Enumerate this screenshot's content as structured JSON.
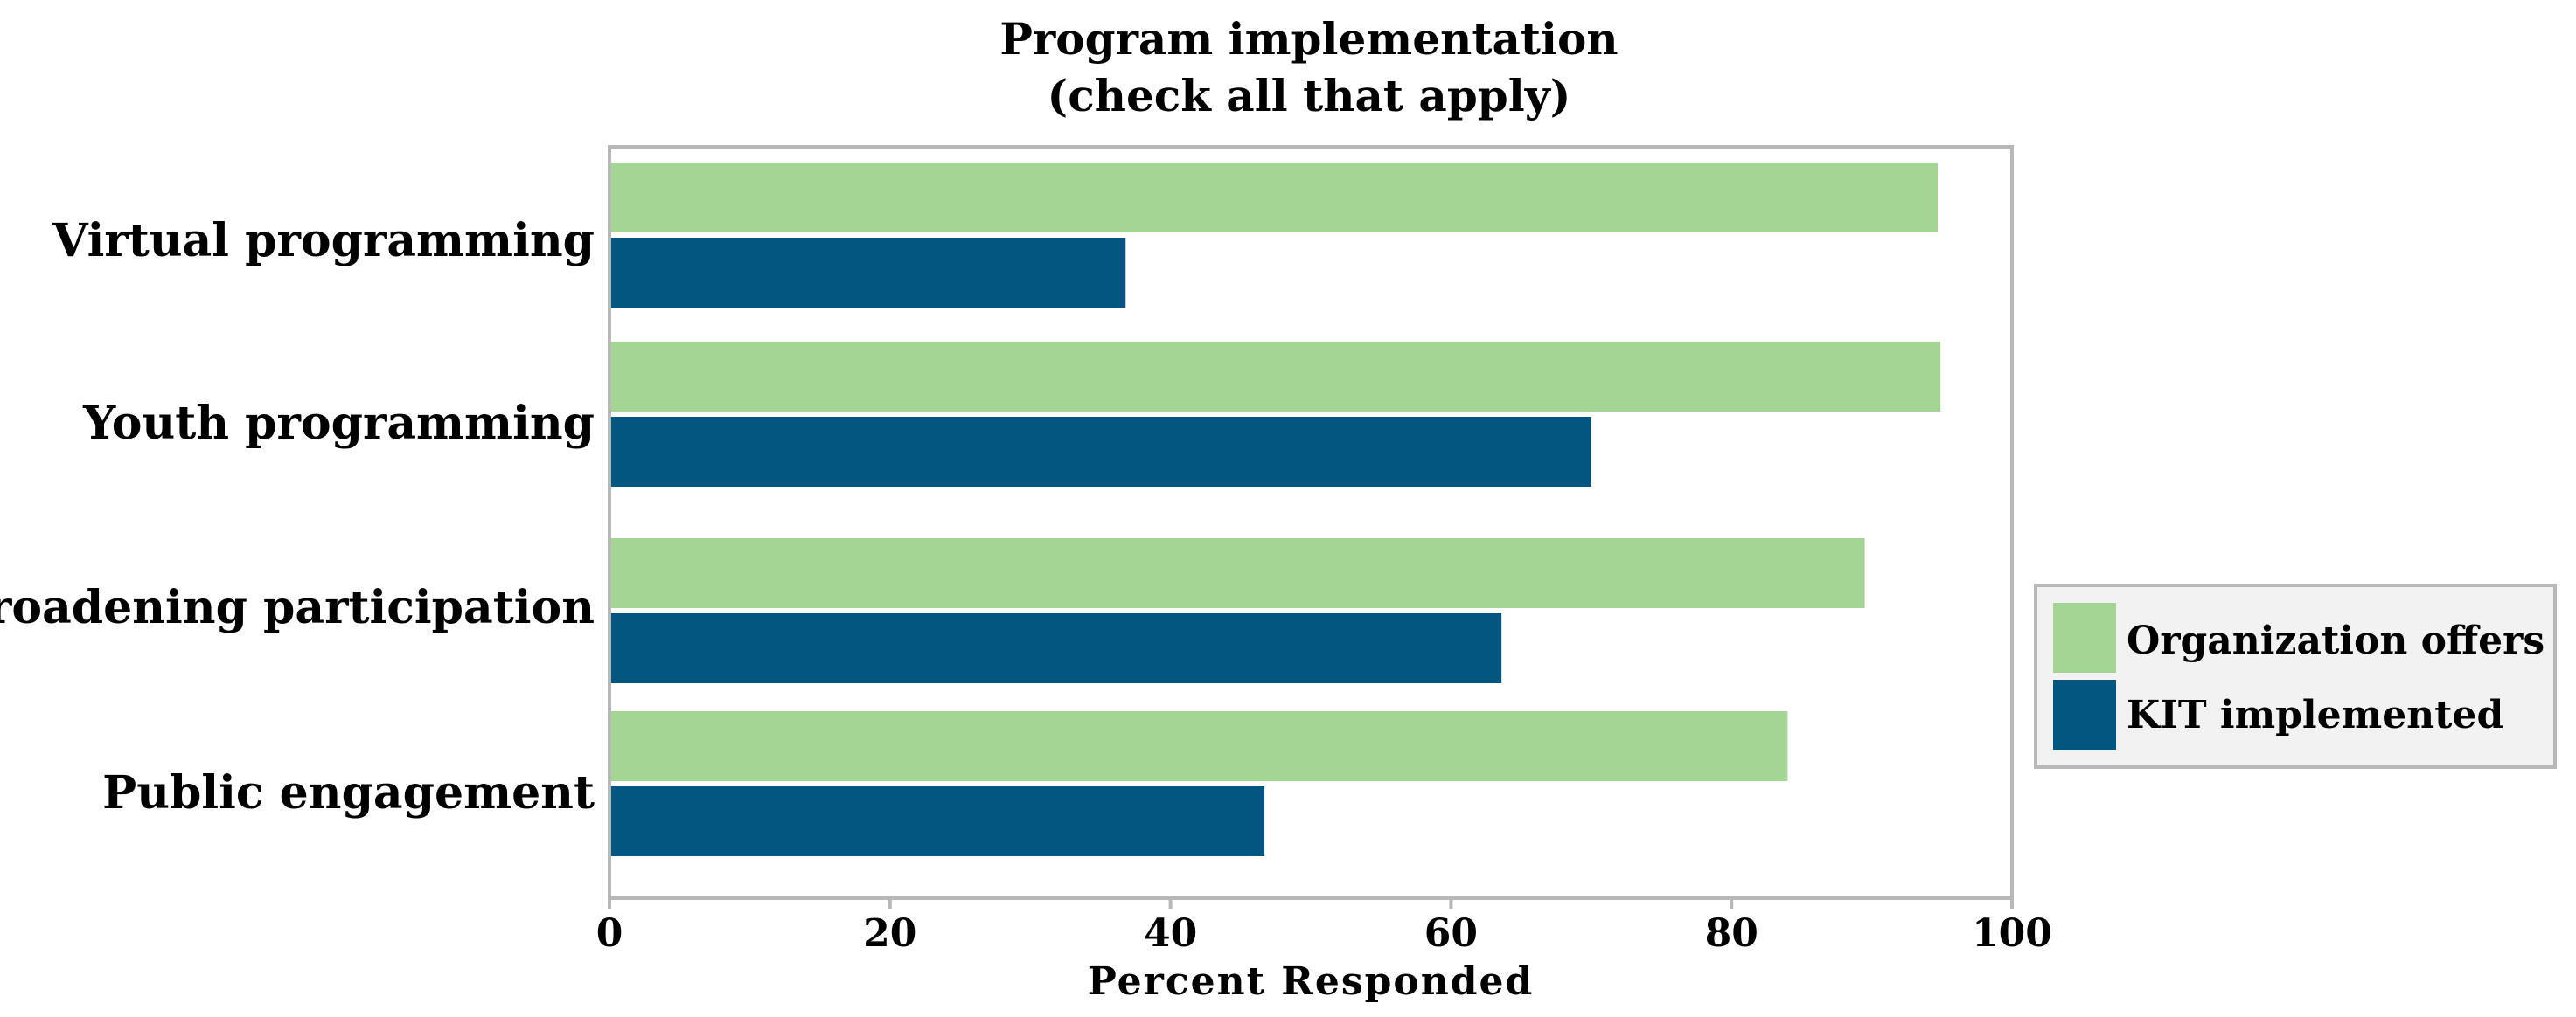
{
  "chart_data": {
    "type": "bar",
    "orientation": "horizontal",
    "title": [
      "Program implementation",
      "(check all that apply)"
    ],
    "categories": [
      "Virtual programming",
      "Youth programming",
      "Broadening participation",
      "Public engagement"
    ],
    "series": [
      {
        "name": "Organization offers",
        "color": "#a5d594",
        "values": [
          94.7,
          94.9,
          89.5,
          84.0
        ]
      },
      {
        "name": "KIT implemented",
        "color": "#02567f",
        "values": [
          36.8,
          70.0,
          63.6,
          46.7
        ]
      }
    ],
    "xlabel": "Percent Responded",
    "ylabel": "",
    "xlim": [
      0,
      100
    ],
    "xticks": [
      0,
      20,
      40,
      60,
      80,
      100
    ],
    "xtick_labels": [
      "0",
      "20",
      "40",
      "60",
      "80",
      "100"
    ],
    "legend_position": "right",
    "grid": false
  }
}
